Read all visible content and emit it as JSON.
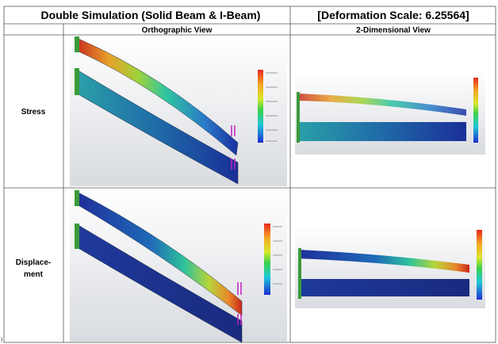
{
  "header": {
    "title": "Double Simulation (Solid Beam & I-Beam)",
    "scale": "[Deformation Scale: 6.25564]"
  },
  "columns": [
    "Orthographic View",
    "2-Dimensional View"
  ],
  "rows": [
    {
      "label_lines": [
        "Stress"
      ]
    },
    {
      "label_lines": [
        "Displace-",
        "ment"
      ]
    }
  ],
  "footnote_mark": ")"
}
